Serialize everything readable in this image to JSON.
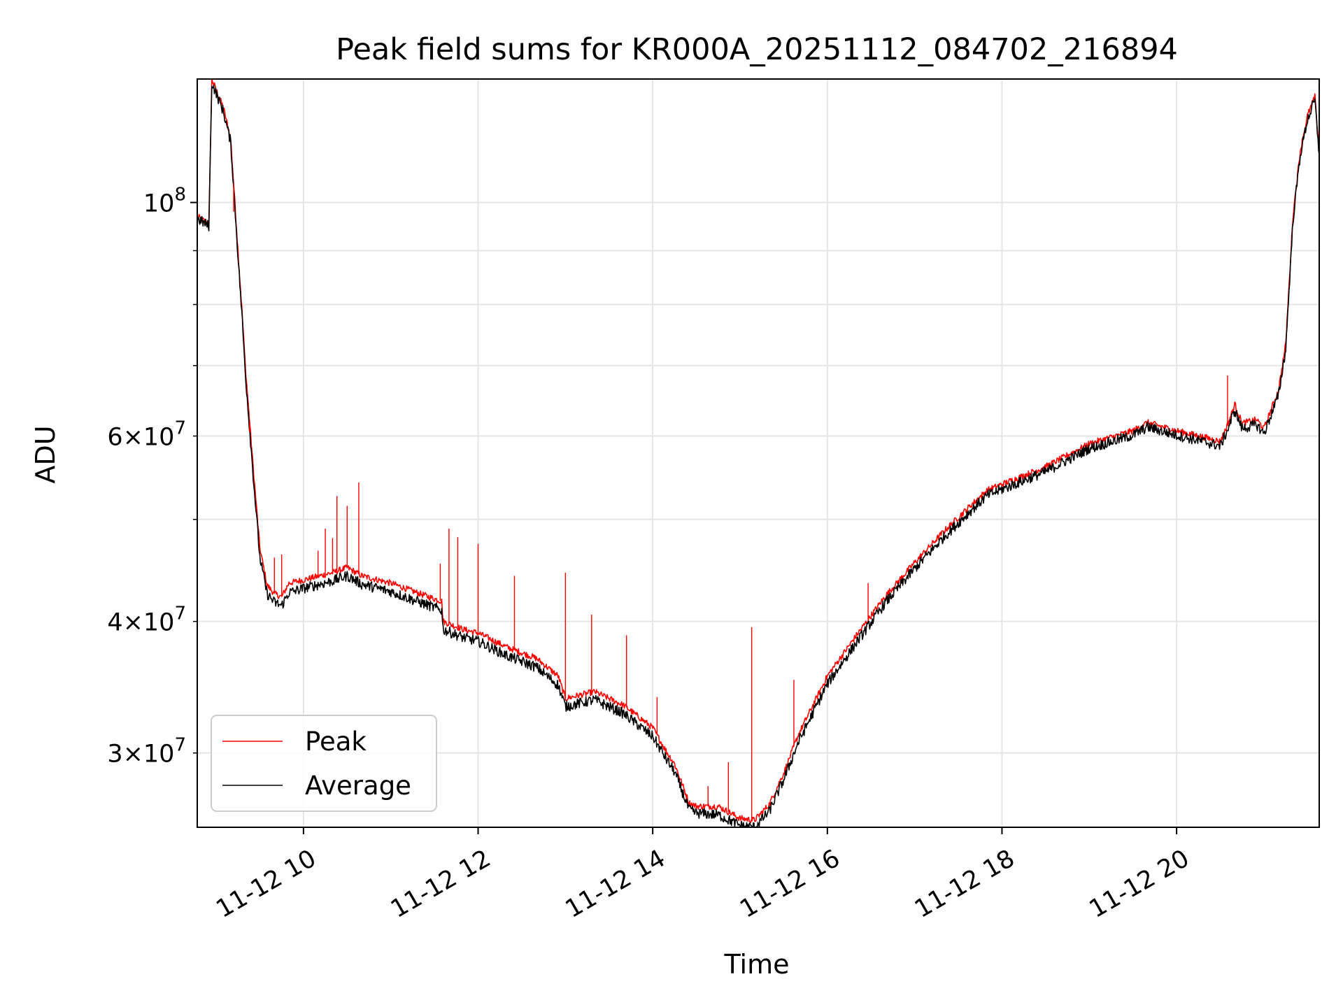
{
  "chart_data": {
    "type": "line",
    "title": "Peak field sums for KR000A_20251112_084702_216894",
    "xlabel": "Time",
    "ylabel": "ADU",
    "yscale": "log",
    "grid": true,
    "legend_location": "lower-left",
    "xlim": [
      "11-12 08:47",
      "11-12 21:38"
    ],
    "ylim": [
      25500000,
      131000000
    ],
    "xticks": [
      {
        "t": "11-12 10:00",
        "label": "11-12 10"
      },
      {
        "t": "11-12 12:00",
        "label": "11-12 12"
      },
      {
        "t": "11-12 14:00",
        "label": "11-12 14"
      },
      {
        "t": "11-12 16:00",
        "label": "11-12 16"
      },
      {
        "t": "11-12 18:00",
        "label": "11-12 18"
      },
      {
        "t": "11-12 20:00",
        "label": "11-12 20"
      }
    ],
    "yticks_major": [
      {
        "value": 100000000,
        "base": "10",
        "exp": "8"
      }
    ],
    "yticks_minor": [
      {
        "value": 30000000,
        "mant": "3",
        "exp": "7"
      },
      {
        "value": 40000000,
        "mant": "4",
        "exp": "7"
      },
      {
        "value": 50000000,
        "mant": "",
        "exp": ""
      },
      {
        "value": 60000000,
        "mant": "6",
        "exp": "7"
      },
      {
        "value": 70000000,
        "mant": "",
        "exp": ""
      },
      {
        "value": 80000000,
        "mant": "",
        "exp": ""
      },
      {
        "value": 90000000,
        "mant": "",
        "exp": ""
      }
    ],
    "series": [
      {
        "name": "Peak",
        "color": "#ff0000",
        "x": [
          "11-12 08:47",
          "11-12 08:55",
          "11-12 08:57",
          "11-12 09:05",
          "11-12 09:10",
          "11-12 09:15",
          "11-12 09:18",
          "11-12 09:20",
          "11-12 09:25",
          "11-12 09:30",
          "11-12 09:35",
          "11-12 09:40",
          "11-12 09:45",
          "11-12 09:50",
          "11-12 10:00",
          "11-12 10:20",
          "11-12 10:30",
          "11-12 10:40",
          "11-12 11:00",
          "11-12 11:20",
          "11-12 11:35",
          "11-12 11:36",
          "11-12 11:50",
          "11-12 12:00",
          "11-12 12:20",
          "11-12 12:40",
          "11-12 12:55",
          "11-12 13:00",
          "11-12 13:20",
          "11-12 13:40",
          "11-12 14:00",
          "11-12 14:10",
          "11-12 14:15",
          "11-12 14:25",
          "11-12 14:30",
          "11-12 14:45",
          "11-12 15:00",
          "11-12 15:10",
          "11-12 15:20",
          "11-12 15:30",
          "11-12 15:40",
          "11-12 16:00",
          "11-12 16:20",
          "11-12 16:40",
          "11-12 17:00",
          "11-12 17:20",
          "11-12 17:40",
          "11-12 17:50",
          "11-12 18:00",
          "11-12 18:30",
          "11-12 19:00",
          "11-12 19:30",
          "11-12 19:40",
          "11-12 20:00",
          "11-12 20:20",
          "11-12 20:30",
          "11-12 20:35",
          "11-12 20:40",
          "11-12 20:45",
          "11-12 20:55",
          "11-12 21:00",
          "11-12 21:10",
          "11-12 21:15",
          "11-12 21:20",
          "11-12 21:25",
          "11-12 21:30",
          "11-12 21:35",
          "11-12 21:38"
        ],
        "y": [
          97000000,
          95500000,
          131000000,
          123000000,
          115000000,
          90000000,
          78000000,
          70000000,
          57000000,
          47000000,
          43300000,
          42500000,
          42200000,
          43500000,
          43800000,
          44500000,
          45000000,
          44200000,
          43500000,
          42500000,
          41800000,
          40000000,
          39300000,
          39000000,
          37800000,
          36900000,
          35500000,
          33800000,
          34300000,
          33300000,
          31700000,
          30000000,
          29300000,
          26900000,
          26700000,
          26700000,
          26000000,
          25900000,
          26800000,
          28700000,
          31200000,
          35500000,
          38800000,
          42300000,
          45500000,
          48700000,
          51800000,
          53300000,
          54000000,
          56100000,
          59000000,
          60700000,
          61800000,
          60700000,
          59800000,
          59300000,
          61500000,
          64300000,
          61700000,
          62200000,
          61000000,
          66300000,
          73400000,
          97300000,
          112000000,
          121000000,
          126000000,
          112000000
        ]
      },
      {
        "name": "Average",
        "color": "#000000",
        "x": [
          "11-12 08:47",
          "11-12 08:55",
          "11-12 08:57",
          "11-12 09:05",
          "11-12 09:10",
          "11-12 09:15",
          "11-12 09:18",
          "11-12 09:20",
          "11-12 09:25",
          "11-12 09:30",
          "11-12 09:35",
          "11-12 09:40",
          "11-12 09:45",
          "11-12 09:50",
          "11-12 10:00",
          "11-12 10:20",
          "11-12 10:30",
          "11-12 10:40",
          "11-12 11:00",
          "11-12 11:20",
          "11-12 11:35",
          "11-12 11:36",
          "11-12 11:50",
          "11-12 12:00",
          "11-12 12:20",
          "11-12 12:40",
          "11-12 12:55",
          "11-12 13:00",
          "11-12 13:20",
          "11-12 13:40",
          "11-12 14:00",
          "11-12 14:10",
          "11-12 14:15",
          "11-12 14:25",
          "11-12 14:30",
          "11-12 14:45",
          "11-12 15:00",
          "11-12 15:10",
          "11-12 15:20",
          "11-12 15:30",
          "11-12 15:40",
          "11-12 16:00",
          "11-12 16:20",
          "11-12 16:40",
          "11-12 17:00",
          "11-12 17:20",
          "11-12 17:40",
          "11-12 17:50",
          "11-12 18:00",
          "11-12 18:30",
          "11-12 19:00",
          "11-12 19:30",
          "11-12 19:40",
          "11-12 20:00",
          "11-12 20:20",
          "11-12 20:30",
          "11-12 20:35",
          "11-12 20:40",
          "11-12 20:45",
          "11-12 20:55",
          "11-12 21:00",
          "11-12 21:10",
          "11-12 21:15",
          "11-12 21:20",
          "11-12 21:25",
          "11-12 21:30",
          "11-12 21:35",
          "11-12 21:38"
        ],
        "y": [
          96500000,
          95000000,
          130000000,
          122000000,
          114000000,
          89000000,
          77000000,
          69000000,
          56000000,
          46000000,
          42500000,
          41700000,
          41400000,
          42600000,
          43000000,
          43700000,
          44200000,
          43400000,
          42700000,
          41700000,
          41000000,
          39300000,
          38600000,
          38300000,
          37100000,
          36200000,
          34800000,
          33200000,
          33700000,
          32700000,
          31100000,
          29500000,
          28800000,
          26500000,
          26300000,
          26200000,
          25600000,
          25500000,
          26400000,
          28300000,
          30700000,
          34900000,
          38200000,
          41700000,
          44900000,
          48100000,
          51200000,
          52700000,
          53400000,
          55500000,
          58400000,
          60100000,
          61200000,
          60100000,
          59200000,
          58700000,
          60800000,
          63500000,
          61000000,
          61500000,
          60300000,
          65600000,
          72600000,
          96300000,
          111000000,
          120000000,
          125000000,
          111000000
        ]
      }
    ],
    "spikes": [
      {
        "x": "11-12 09:12",
        "y": 98000000
      },
      {
        "x": "11-12 09:23",
        "y": 60500000
      },
      {
        "x": "11-12 09:40",
        "y": 46000000
      },
      {
        "x": "11-12 09:45",
        "y": 46300000
      },
      {
        "x": "11-12 10:10",
        "y": 46700000
      },
      {
        "x": "11-12 10:15",
        "y": 49000000
      },
      {
        "x": "11-12 10:20",
        "y": 48000000
      },
      {
        "x": "11-12 10:23",
        "y": 52600000
      },
      {
        "x": "11-12 10:30",
        "y": 51500000
      },
      {
        "x": "11-12 10:38",
        "y": 54200000
      },
      {
        "x": "11-12 11:34",
        "y": 45400000
      },
      {
        "x": "11-12 11:40",
        "y": 49000000
      },
      {
        "x": "11-12 11:46",
        "y": 48100000
      },
      {
        "x": "11-12 12:00",
        "y": 47400000
      },
      {
        "x": "11-12 12:25",
        "y": 44200000
      },
      {
        "x": "11-12 13:00",
        "y": 44500000
      },
      {
        "x": "11-12 13:18",
        "y": 40600000
      },
      {
        "x": "11-12 13:42",
        "y": 38800000
      },
      {
        "x": "11-12 14:03",
        "y": 33900000
      },
      {
        "x": "11-12 14:38",
        "y": 27900000
      },
      {
        "x": "11-12 14:52",
        "y": 29400000
      },
      {
        "x": "11-12 15:08",
        "y": 39500000
      },
      {
        "x": "11-12 15:37",
        "y": 35200000
      },
      {
        "x": "11-12 16:28",
        "y": 43500000
      },
      {
        "x": "11-12 20:35",
        "y": 68500000
      }
    ]
  }
}
